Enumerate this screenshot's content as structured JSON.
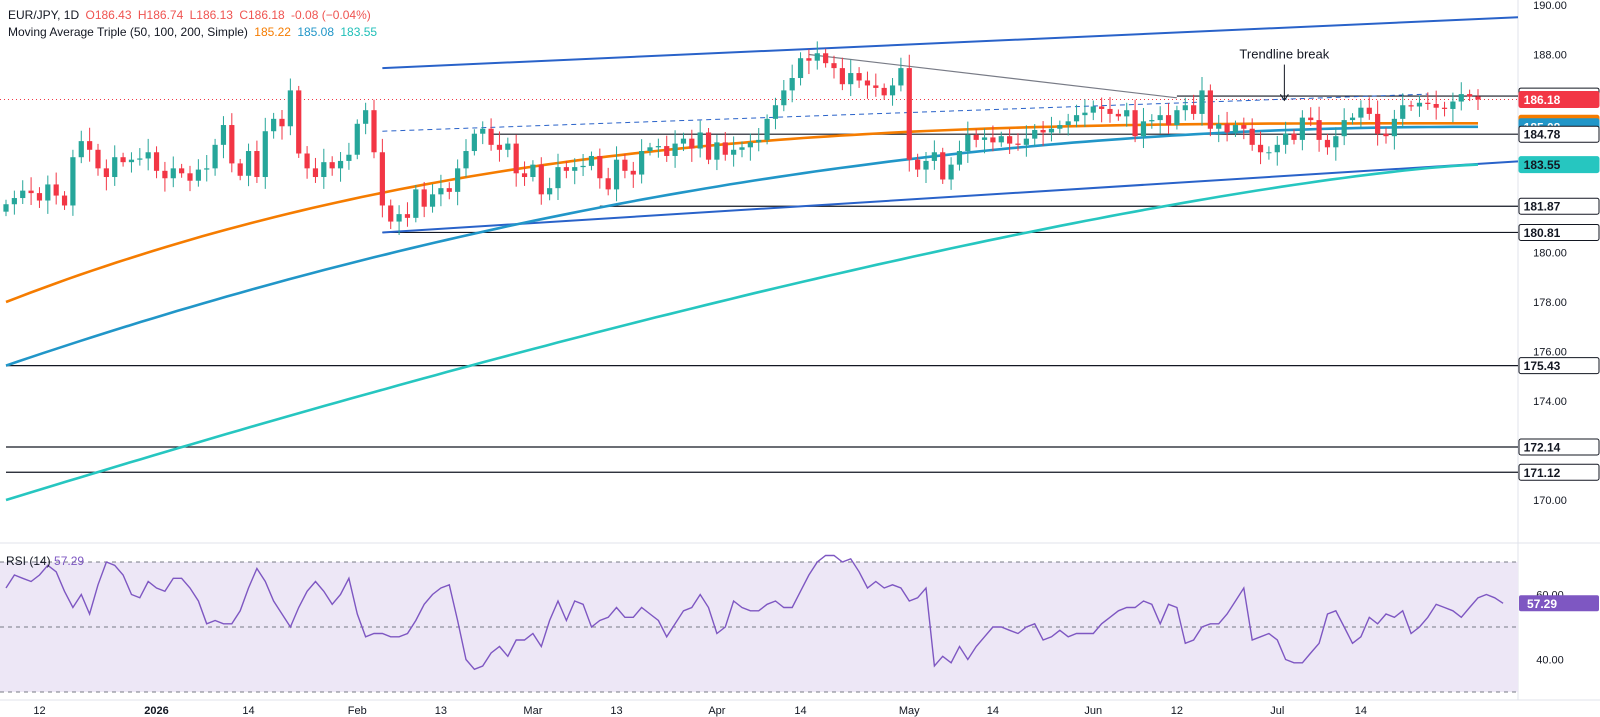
{
  "legend": {
    "symbol": "EUR/JPY, 1D",
    "open": "O186.43",
    "high": "H186.74",
    "low": "L186.13",
    "close": "C186.18",
    "change": "-0.08 (−0.04%)",
    "ma_title": "Moving Average Triple (50, 100, 200, Simple)",
    "ma50": "185.22",
    "ma100": "185.08",
    "ma200": "183.55"
  },
  "rsi_legend": {
    "label": "RSI (14)",
    "value": "57.29"
  },
  "colors": {
    "up": "#26a69a",
    "down": "#f23645",
    "ma50": "#f57c00",
    "ma100": "#2196c8",
    "ma200": "#26c6c0",
    "channel": "#2962c9",
    "rsi": "#7e57c2",
    "rsi_band": "#ede7f6"
  },
  "chart_data": [
    {
      "type": "candlestick",
      "symbol": "EUR/JPY",
      "timeframe": "1D",
      "ylim": [
        168.5,
        190.4
      ],
      "y_ticks": [
        "170.00",
        "174.00",
        "176.00",
        "178.00",
        "180.00",
        "188.00",
        "190.00"
      ],
      "x_ticks": [
        "12",
        "2026",
        "14",
        "Feb",
        "13",
        "Mar",
        "13",
        "Apr",
        "14",
        "May",
        "14",
        "Jun",
        "12",
        "Jul",
        "14"
      ],
      "x_tick_index": [
        4,
        18,
        29,
        42,
        52,
        63,
        73,
        85,
        95,
        108,
        118,
        130,
        140,
        152,
        162
      ],
      "price_tags": [
        {
          "label": "186.32",
          "value": 186.32,
          "kind": "level"
        },
        {
          "label": "186.18",
          "value": 186.18,
          "kind": "last"
        },
        {
          "label": "185.22",
          "value": 185.22,
          "kind": "ma50"
        },
        {
          "label": "185.08",
          "value": 185.08,
          "kind": "ma100"
        },
        {
          "label": "184.78",
          "value": 184.78,
          "kind": "level"
        },
        {
          "label": "183.55",
          "value": 183.55,
          "kind": "ma200"
        },
        {
          "label": "181.87",
          "value": 181.87,
          "kind": "level"
        },
        {
          "label": "180.81",
          "value": 180.81,
          "kind": "level"
        },
        {
          "label": "175.43",
          "value": 175.43,
          "kind": "level"
        },
        {
          "label": "172.14",
          "value": 172.14,
          "kind": "level"
        },
        {
          "label": "171.12",
          "value": 171.12,
          "kind": "level"
        }
      ],
      "horizontal_levels": [
        {
          "value": 186.32,
          "from_index": 140
        },
        {
          "value": 184.78,
          "from_index": 58
        },
        {
          "value": 181.87,
          "from_index": 71
        },
        {
          "value": 180.81,
          "from_index": 45
        },
        {
          "value": 175.43,
          "from_index": 0
        },
        {
          "value": 172.14,
          "from_index": 0
        },
        {
          "value": 171.12,
          "from_index": 0
        }
      ],
      "channel": {
        "upper": [
          [
            45,
            187.45
          ],
          [
            177,
            189.45
          ]
        ],
        "lower": [
          [
            45,
            180.81
          ],
          [
            177,
            183.6
          ]
        ]
      },
      "trendline": [
        [
          96,
          188.0
        ],
        [
          140,
          186.25
        ]
      ],
      "dashed_trendline": [
        [
          45,
          184.9
        ],
        [
          170,
          186.4
        ]
      ],
      "annotation": {
        "text": "Trendline break",
        "index": 155,
        "value": 187.35
      },
      "closes": [
        181.95,
        182.2,
        182.5,
        182.4,
        182.1,
        182.75,
        182.3,
        181.9,
        183.85,
        184.5,
        184.15,
        183.4,
        183.05,
        183.85,
        183.65,
        183.75,
        183.8,
        184.05,
        183.3,
        183.0,
        183.4,
        183.2,
        182.9,
        183.35,
        183.4,
        184.35,
        185.15,
        183.6,
        183.1,
        184.1,
        183.05,
        184.9,
        185.4,
        185.1,
        186.55,
        184.0,
        183.4,
        183.05,
        183.65,
        183.4,
        183.7,
        183.95,
        185.2,
        185.75,
        184.05,
        181.9,
        181.25,
        181.55,
        181.4,
        182.55,
        181.85,
        182.35,
        182.6,
        182.45,
        183.4,
        184.1,
        184.8,
        185.0,
        184.35,
        184.15,
        184.4,
        183.2,
        183.05,
        183.55,
        182.35,
        182.6,
        183.45,
        183.3,
        183.45,
        183.5,
        183.9,
        183.0,
        182.55,
        183.75,
        183.3,
        183.15,
        184.1,
        184.25,
        184.3,
        183.9,
        184.4,
        184.6,
        184.2,
        184.85,
        183.75,
        184.45,
        183.95,
        184.15,
        184.25,
        184.45,
        184.55,
        185.4,
        185.95,
        186.55,
        187.05,
        187.85,
        187.75,
        188.05,
        187.65,
        187.45,
        186.8,
        187.25,
        186.95,
        186.75,
        186.65,
        186.35,
        186.75,
        187.45,
        183.75,
        183.35,
        183.7,
        184.05,
        182.95,
        183.55,
        184.1,
        184.75,
        184.55,
        184.65,
        184.45,
        184.7,
        184.4,
        184.35,
        184.6,
        184.95,
        184.85,
        185.0,
        185.15,
        185.3,
        185.55,
        185.65,
        185.9,
        185.8,
        185.6,
        185.5,
        185.75,
        184.7,
        185.3,
        185.35,
        185.55,
        185.15,
        185.75,
        185.95,
        185.6,
        186.55,
        185.0,
        185.2,
        184.85,
        185.15,
        185.0,
        184.35,
        184.05,
        184.05,
        184.35,
        184.8,
        184.55,
        185.45,
        185.35,
        184.55,
        184.25,
        184.7,
        185.35,
        185.45,
        185.85,
        185.6,
        184.8,
        184.7,
        185.4,
        185.95,
        185.9,
        186.05,
        186.0,
        185.85,
        185.8,
        186.1,
        186.4,
        186.3,
        186.18
      ],
      "series": [
        {
          "name": "185.22",
          "legend_group": "Moving Average Triple (50, 100, 200, Simple)",
          "start": 178.0,
          "end": 185.22
        },
        {
          "name": "185.08",
          "legend_group": "Moving Average Triple (50, 100, 200, Simple)",
          "start": 175.43,
          "end": 185.08
        },
        {
          "name": "183.55",
          "legend_group": "Moving Average Triple (50, 100, 200, Simple)",
          "start": 170.0,
          "end": 183.55
        }
      ]
    },
    {
      "type": "line",
      "title": "RSI (14)",
      "ylim": [
        29,
        76
      ],
      "y_ticks": [
        "40.00",
        "60.00"
      ],
      "band": [
        30,
        70
      ],
      "midline": 50,
      "last": 57.29,
      "values": [
        62,
        66,
        65,
        64,
        66,
        69,
        67,
        61,
        56,
        60,
        54,
        63,
        70,
        69,
        66,
        60,
        59,
        64,
        62,
        61,
        65,
        65,
        62,
        58,
        51,
        52,
        51,
        51,
        55,
        62,
        68,
        64,
        58,
        54,
        50,
        56,
        61,
        64,
        61,
        57,
        60,
        65,
        54,
        47,
        48,
        48,
        47,
        47,
        48,
        52,
        57,
        60,
        62,
        63,
        52,
        40,
        37,
        38,
        42,
        44,
        41,
        46,
        46,
        48,
        44,
        52,
        58,
        52,
        58,
        57,
        50,
        52,
        53,
        56,
        53,
        53,
        56,
        54,
        52,
        47,
        51,
        55,
        56,
        60,
        56,
        48,
        50,
        58,
        56,
        55,
        55,
        57,
        58,
        56,
        56,
        61,
        66,
        70,
        72,
        72,
        70,
        71,
        67,
        62,
        64,
        62,
        63,
        62,
        58,
        59,
        62,
        38,
        41,
        39,
        44,
        40,
        44,
        47,
        50,
        50,
        49,
        48,
        50,
        51,
        46,
        47,
        49,
        47,
        48,
        48,
        48,
        51,
        53,
        55,
        56,
        56,
        58,
        57,
        51,
        57,
        56,
        45,
        46,
        50,
        51,
        51,
        54,
        58,
        62,
        46,
        47,
        48,
        46,
        40,
        39,
        39,
        42,
        45,
        54,
        55,
        50,
        45,
        47,
        53,
        51,
        54,
        53,
        55,
        48,
        50,
        53,
        57,
        56,
        55,
        53,
        56,
        59,
        60,
        59,
        57.29
      ]
    }
  ]
}
